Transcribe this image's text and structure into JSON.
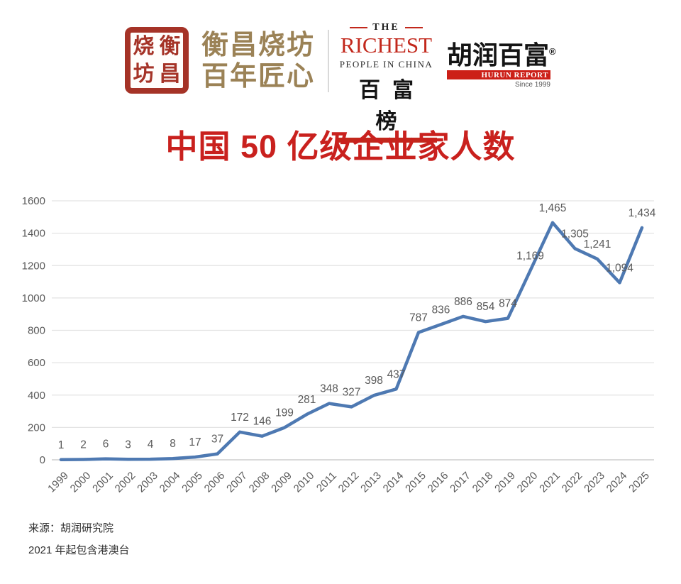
{
  "header": {
    "seal": {
      "chars": [
        "烧",
        "衡",
        "坊",
        "昌"
      ],
      "color": "#a53327"
    },
    "brand": {
      "line1": "衡昌烧坊",
      "line2": "百年匠心",
      "color": "#9b8256"
    },
    "richest_logo": {
      "the": "THE",
      "richest": "RICHEST",
      "people": "PEOPLE IN CHINA",
      "chinese": "百富榜",
      "accent": "#c2281c"
    },
    "hurun_logo": {
      "name": "胡润百富",
      "reg": "®",
      "report": "HURUN REPORT",
      "since": "Since 1999",
      "accent": "#cc1f17"
    }
  },
  "title": {
    "text": "中国 50 亿级企业家人数",
    "color": "#c9211e"
  },
  "chart_data": {
    "type": "line",
    "title": "中国 50 亿级企业家人数",
    "x": [
      "1999",
      "2000",
      "2001",
      "2002",
      "2003",
      "2004",
      "2005",
      "2006",
      "2007",
      "2008",
      "2009",
      "2010",
      "2011",
      "2012",
      "2013",
      "2014",
      "2015",
      "2016",
      "2017",
      "2018",
      "2019",
      "2020",
      "2021",
      "2022",
      "2023",
      "2024",
      "2025"
    ],
    "values": [
      1,
      2,
      6,
      3,
      4,
      8,
      17,
      37,
      172,
      146,
      199,
      281,
      348,
      327,
      398,
      437,
      787,
      836,
      886,
      854,
      874,
      1169,
      1465,
      1305,
      1241,
      1094,
      1434
    ],
    "point_labels": [
      "1",
      "2",
      "6",
      "3",
      "4",
      "8",
      "17",
      "37",
      "172",
      "146",
      "199",
      "281",
      "348",
      "327",
      "398",
      "437",
      "787",
      "836",
      "886",
      "854",
      "874",
      "1,169",
      "1,465",
      "1,305",
      "1,241",
      "1,094",
      "1,434"
    ],
    "xlabel": "",
    "ylabel": "",
    "ylim": [
      0,
      1600
    ],
    "ytick_step": 200,
    "grid": true,
    "legend": "none",
    "line_color": "#4e79b2",
    "grid_color": "#e3e3e3",
    "axis_line_color": "#c4c4c4",
    "axis_label_color": "#595959",
    "point_label_color": "#595959"
  },
  "footer": {
    "source": "来源：胡润研究院",
    "note": "2021 年起包含港澳台"
  }
}
